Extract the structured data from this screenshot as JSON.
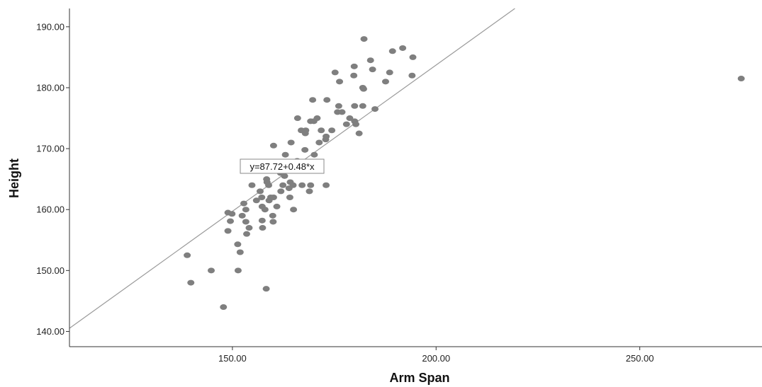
{
  "chart_data": {
    "type": "scatter",
    "title": "",
    "xlabel": "Arm Span",
    "ylabel": "Height",
    "xlim": [
      110,
      280
    ],
    "ylim": [
      137.5,
      193
    ],
    "x_ticks": [
      150,
      200,
      250
    ],
    "x_tick_labels": [
      "150.00",
      "200.00",
      "250.00"
    ],
    "y_ticks": [
      140,
      150,
      160,
      170,
      180,
      190
    ],
    "y_tick_labels": [
      "140.00",
      "150.00",
      "160.00",
      "170.00",
      "180.00",
      "190.00"
    ],
    "grid": false,
    "legend": "none",
    "fit_line": {
      "intercept": 87.72,
      "slope": 0.48,
      "label": "y=87.72+0.48*x"
    },
    "colors": {
      "points": "#7f7f7f",
      "fit_line": "#9a9a9a",
      "axes": "#333333"
    },
    "points": [
      [
        138.9,
        152.5
      ],
      [
        139.8,
        148.0
      ],
      [
        144.8,
        150.0
      ],
      [
        147.8,
        144.0
      ],
      [
        148.9,
        159.5
      ],
      [
        148.9,
        156.5
      ],
      [
        149.5,
        158.1
      ],
      [
        149.9,
        159.3
      ],
      [
        151.3,
        154.3
      ],
      [
        151.4,
        150.0
      ],
      [
        151.9,
        153.0
      ],
      [
        152.4,
        159.0
      ],
      [
        152.8,
        161.0
      ],
      [
        153.3,
        158.0
      ],
      [
        153.3,
        160.0
      ],
      [
        153.5,
        156.0
      ],
      [
        154.1,
        157.0
      ],
      [
        154.8,
        164.0
      ],
      [
        155.9,
        161.5
      ],
      [
        156.8,
        163.0
      ],
      [
        157.2,
        162.0
      ],
      [
        157.3,
        160.5
      ],
      [
        157.4,
        157.0
      ],
      [
        157.3,
        158.2
      ],
      [
        158.0,
        160.0
      ],
      [
        158.4,
        165.0
      ],
      [
        158.5,
        164.5
      ],
      [
        158.3,
        147.0
      ],
      [
        158.9,
        164.0
      ],
      [
        159.0,
        161.5
      ],
      [
        159.4,
        162.0
      ],
      [
        159.9,
        159.0
      ],
      [
        160.0,
        158.0
      ],
      [
        160.1,
        170.5
      ],
      [
        160.1,
        162.0
      ],
      [
        160.9,
        160.5
      ],
      [
        161.8,
        166.0
      ],
      [
        161.9,
        163.0
      ],
      [
        162.4,
        164.0
      ],
      [
        162.8,
        165.5
      ],
      [
        163.0,
        169.0
      ],
      [
        163.3,
        167.0
      ],
      [
        163.9,
        163.5
      ],
      [
        164.1,
        162.0
      ],
      [
        164.2,
        164.5
      ],
      [
        164.4,
        171.0
      ],
      [
        164.9,
        164.0
      ],
      [
        165.0,
        160.0
      ],
      [
        165.9,
        168.0
      ],
      [
        166.0,
        175.0
      ],
      [
        166.9,
        173.0
      ],
      [
        167.1,
        164.0
      ],
      [
        167.8,
        169.8
      ],
      [
        167.9,
        172.5
      ],
      [
        168.0,
        173.0
      ],
      [
        168.9,
        163.0
      ],
      [
        169.2,
        164.0
      ],
      [
        169.2,
        174.5
      ],
      [
        169.7,
        178.0
      ],
      [
        170.0,
        174.5
      ],
      [
        170.1,
        169.0
      ],
      [
        170.8,
        175.0
      ],
      [
        171.3,
        171.0
      ],
      [
        171.8,
        173.0
      ],
      [
        172.9,
        171.5
      ],
      [
        173.0,
        164.0
      ],
      [
        173.0,
        172.0
      ],
      [
        173.2,
        178.0
      ],
      [
        174.4,
        173.0
      ],
      [
        175.2,
        182.5
      ],
      [
        175.8,
        176.0
      ],
      [
        176.1,
        177.0
      ],
      [
        176.3,
        181.0
      ],
      [
        176.9,
        176.0
      ],
      [
        178.0,
        174.0
      ],
      [
        178.8,
        175.0
      ],
      [
        179.8,
        182.0
      ],
      [
        179.9,
        183.5
      ],
      [
        180.0,
        177.0
      ],
      [
        180.0,
        174.5
      ],
      [
        180.3,
        174.0
      ],
      [
        181.1,
        172.5
      ],
      [
        182.0,
        177.0
      ],
      [
        182.0,
        180.0
      ],
      [
        182.2,
        179.8
      ],
      [
        182.3,
        188.0
      ],
      [
        183.9,
        184.5
      ],
      [
        184.4,
        183.0
      ],
      [
        185.0,
        176.5
      ],
      [
        187.6,
        181.0
      ],
      [
        188.6,
        182.5
      ],
      [
        189.3,
        186.0
      ],
      [
        191.8,
        186.5
      ],
      [
        194.1,
        182.0
      ],
      [
        194.3,
        185.0
      ],
      [
        274.9,
        181.5
      ]
    ]
  }
}
